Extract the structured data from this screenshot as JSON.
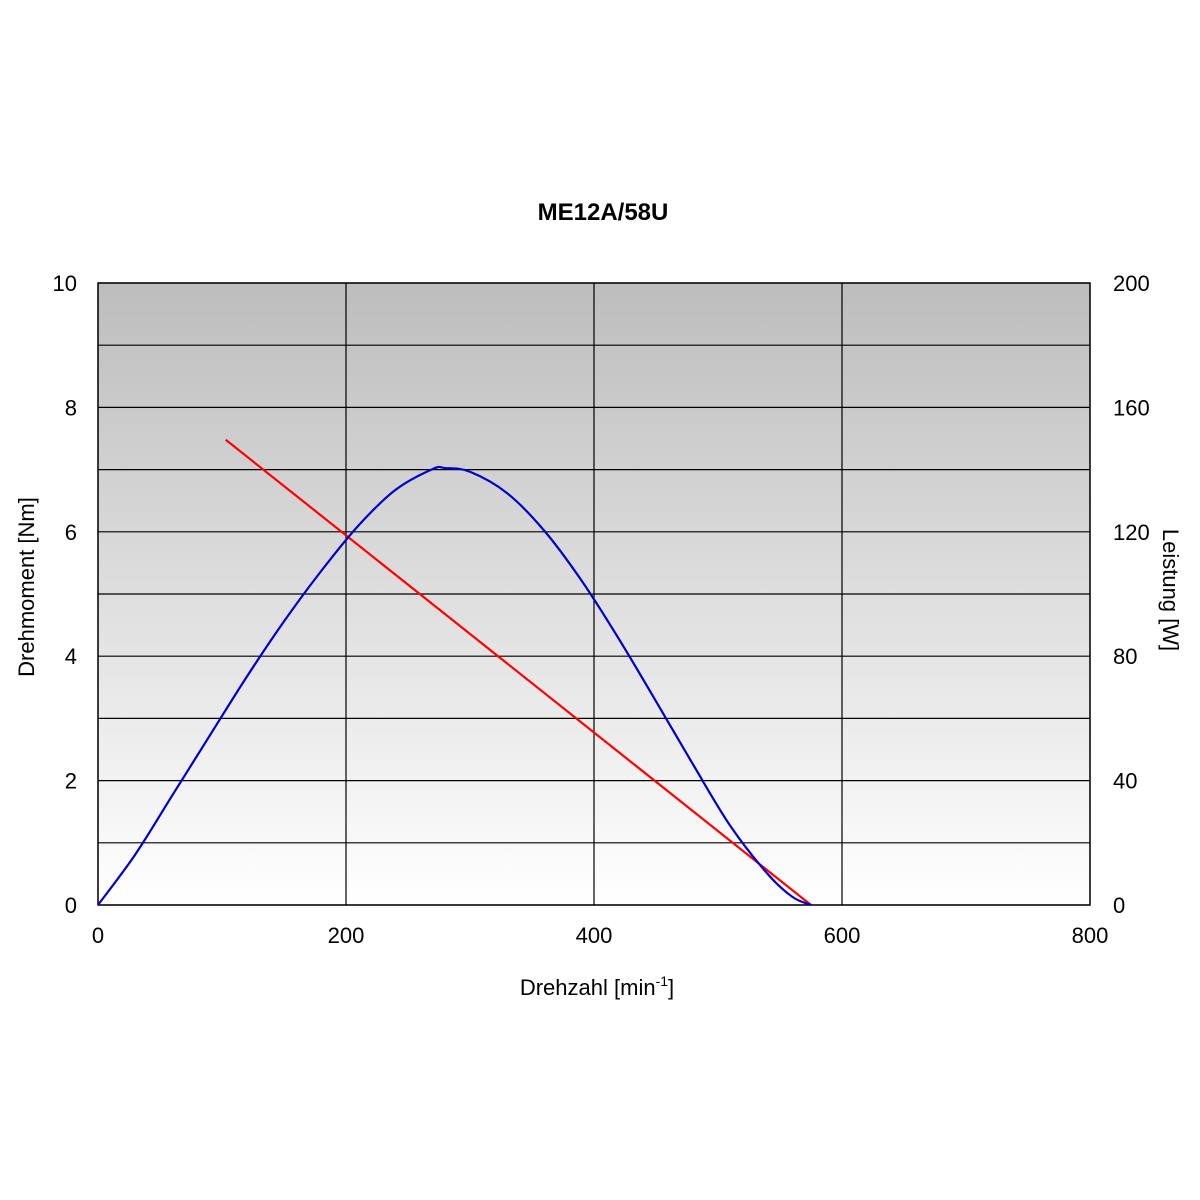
{
  "chart_data": {
    "type": "line",
    "title": "ME12A/58U",
    "xlabel": {
      "main": "Drehzahl [min",
      "sup": "-1",
      "end": "]"
    },
    "ylabel_left": "Drehmoment [Nm]",
    "ylabel_right": "Leistung [W]",
    "xlim": [
      0,
      800
    ],
    "ylim_left": [
      0,
      10
    ],
    "ylim_right": [
      0,
      200
    ],
    "x_ticks": [
      "0",
      "200",
      "400",
      "600",
      "800"
    ],
    "y_left_ticks": [
      "0",
      "2",
      "4",
      "6",
      "8",
      "10"
    ],
    "y_right_ticks": [
      "0",
      "40",
      "80",
      "120",
      "160",
      "200"
    ],
    "grid": true,
    "legend": "none",
    "series": [
      {
        "axis": "left",
        "color": "#ff0000",
        "x": [
          103,
          575
        ],
        "y": [
          7.48,
          0
        ]
      },
      {
        "axis": "right",
        "color": "#0000cc",
        "x": [
          0,
          30,
          60,
          90,
          120,
          150,
          180,
          210,
          240,
          270,
          280,
          300,
          330,
          360,
          390,
          420,
          450,
          480,
          510,
          540,
          560,
          575
        ],
        "y": [
          0,
          16.2,
          35.3,
          54.4,
          73.4,
          91.2,
          107.4,
          122,
          133.5,
          140.2,
          140.5,
          139.3,
          132.4,
          120.3,
          104.3,
          85.6,
          65.5,
          45.1,
          25.4,
          10,
          2.6,
          0
        ]
      }
    ]
  }
}
